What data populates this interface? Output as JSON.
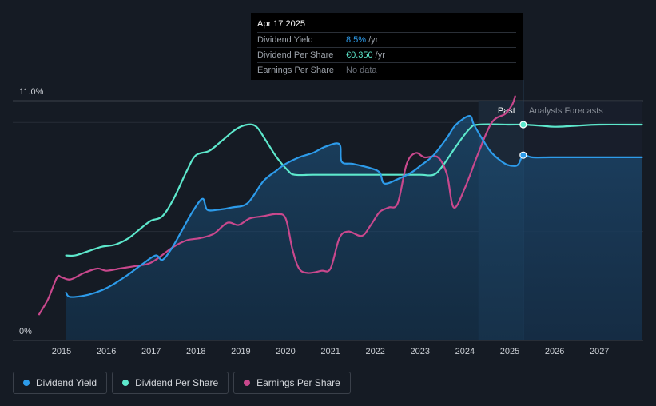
{
  "chart_data": {
    "type": "line",
    "ylim": [
      0,
      11
    ],
    "y_tick_labels": [
      "11.0%",
      "0%"
    ],
    "x_ticks": [
      "2015",
      "2016",
      "2017",
      "2018",
      "2019",
      "2020",
      "2021",
      "2022",
      "2023",
      "2024",
      "2025",
      "2026",
      "2027"
    ],
    "region_labels": {
      "past": "Past",
      "forecast": "Analysts Forecasts"
    },
    "forecast_start": 2025.3,
    "shade_start": 2024.3,
    "x_range": [
      2014.3,
      2027.95
    ],
    "series": [
      {
        "name": "Dividend Yield",
        "color": "#2d9bea",
        "fill": true,
        "points": [
          [
            2015.1,
            2.2
          ],
          [
            2015.2,
            2.0
          ],
          [
            2015.6,
            2.1
          ],
          [
            2016.0,
            2.4
          ],
          [
            2016.4,
            2.9
          ],
          [
            2016.8,
            3.5
          ],
          [
            2017.1,
            3.9
          ],
          [
            2017.25,
            3.7
          ],
          [
            2017.45,
            4.2
          ],
          [
            2017.7,
            5.1
          ],
          [
            2017.95,
            6.0
          ],
          [
            2018.15,
            6.5
          ],
          [
            2018.25,
            6.0
          ],
          [
            2018.5,
            6.0
          ],
          [
            2018.8,
            6.1
          ],
          [
            2019.15,
            6.3
          ],
          [
            2019.5,
            7.3
          ],
          [
            2019.8,
            7.8
          ],
          [
            2020.0,
            8.1
          ],
          [
            2020.3,
            8.4
          ],
          [
            2020.6,
            8.6
          ],
          [
            2020.9,
            8.9
          ],
          [
            2021.2,
            9.0
          ],
          [
            2021.25,
            8.2
          ],
          [
            2021.5,
            8.1
          ],
          [
            2021.9,
            7.9
          ],
          [
            2022.1,
            7.7
          ],
          [
            2022.2,
            7.2
          ],
          [
            2022.5,
            7.4
          ],
          [
            2022.8,
            7.7
          ],
          [
            2023.0,
            8.0
          ],
          [
            2023.3,
            8.5
          ],
          [
            2023.6,
            9.3
          ],
          [
            2023.8,
            9.9
          ],
          [
            2024.1,
            10.3
          ],
          [
            2024.2,
            9.9
          ],
          [
            2024.4,
            9.2
          ],
          [
            2024.6,
            8.6
          ],
          [
            2024.9,
            8.1
          ],
          [
            2025.1,
            8.0
          ],
          [
            2025.2,
            8.1
          ],
          [
            2025.3,
            8.5
          ],
          [
            2025.5,
            8.4
          ],
          [
            2025.9,
            8.4
          ],
          [
            2026.4,
            8.4
          ],
          [
            2026.9,
            8.4
          ],
          [
            2027.4,
            8.4
          ],
          [
            2027.95,
            8.4
          ]
        ]
      },
      {
        "name": "Dividend Per Share",
        "color": "#5de8cc",
        "fill": false,
        "points": [
          [
            2015.1,
            3.9
          ],
          [
            2015.3,
            3.9
          ],
          [
            2015.6,
            4.1
          ],
          [
            2015.9,
            4.3
          ],
          [
            2016.2,
            4.4
          ],
          [
            2016.5,
            4.7
          ],
          [
            2016.8,
            5.2
          ],
          [
            2017.0,
            5.5
          ],
          [
            2017.25,
            5.7
          ],
          [
            2017.5,
            6.5
          ],
          [
            2017.8,
            7.8
          ],
          [
            2018.0,
            8.5
          ],
          [
            2018.3,
            8.7
          ],
          [
            2018.6,
            9.2
          ],
          [
            2018.9,
            9.7
          ],
          [
            2019.15,
            9.9
          ],
          [
            2019.35,
            9.8
          ],
          [
            2019.55,
            9.2
          ],
          [
            2019.8,
            8.4
          ],
          [
            2020.05,
            7.8
          ],
          [
            2020.2,
            7.6
          ],
          [
            2020.6,
            7.6
          ],
          [
            2021.0,
            7.6
          ],
          [
            2021.5,
            7.6
          ],
          [
            2022.0,
            7.6
          ],
          [
            2022.5,
            7.6
          ],
          [
            2023.0,
            7.6
          ],
          [
            2023.3,
            7.6
          ],
          [
            2023.5,
            8.0
          ],
          [
            2023.8,
            8.9
          ],
          [
            2024.1,
            9.7
          ],
          [
            2024.3,
            9.9
          ],
          [
            2025.0,
            9.9
          ],
          [
            2025.3,
            9.9
          ],
          [
            2025.7,
            9.85
          ],
          [
            2026.0,
            9.8
          ],
          [
            2026.5,
            9.85
          ],
          [
            2027.0,
            9.9
          ],
          [
            2027.95,
            9.9
          ]
        ]
      },
      {
        "name": "Earnings Per Share",
        "color": "#c9488d",
        "fill": false,
        "points": [
          [
            2014.5,
            1.2
          ],
          [
            2014.7,
            1.9
          ],
          [
            2014.9,
            2.9
          ],
          [
            2015.0,
            2.9
          ],
          [
            2015.2,
            2.8
          ],
          [
            2015.5,
            3.1
          ],
          [
            2015.8,
            3.3
          ],
          [
            2016.0,
            3.2
          ],
          [
            2016.3,
            3.3
          ],
          [
            2016.6,
            3.4
          ],
          [
            2016.9,
            3.5
          ],
          [
            2017.1,
            3.7
          ],
          [
            2017.5,
            4.3
          ],
          [
            2017.8,
            4.6
          ],
          [
            2018.1,
            4.7
          ],
          [
            2018.4,
            4.9
          ],
          [
            2018.7,
            5.4
          ],
          [
            2018.95,
            5.3
          ],
          [
            2019.2,
            5.6
          ],
          [
            2019.5,
            5.7
          ],
          [
            2019.8,
            5.8
          ],
          [
            2020.0,
            5.6
          ],
          [
            2020.15,
            4.2
          ],
          [
            2020.3,
            3.3
          ],
          [
            2020.5,
            3.1
          ],
          [
            2020.8,
            3.2
          ],
          [
            2021.0,
            3.3
          ],
          [
            2021.2,
            4.7
          ],
          [
            2021.4,
            5.0
          ],
          [
            2021.7,
            4.8
          ],
          [
            2021.9,
            5.3
          ],
          [
            2022.1,
            5.9
          ],
          [
            2022.3,
            6.1
          ],
          [
            2022.5,
            6.3
          ],
          [
            2022.7,
            8.1
          ],
          [
            2022.9,
            8.6
          ],
          [
            2023.1,
            8.4
          ],
          [
            2023.4,
            8.4
          ],
          [
            2023.6,
            7.6
          ],
          [
            2023.75,
            6.1
          ],
          [
            2024.0,
            7.0
          ],
          [
            2024.3,
            8.6
          ],
          [
            2024.6,
            10.0
          ],
          [
            2024.9,
            10.4
          ],
          [
            2025.05,
            10.8
          ],
          [
            2025.12,
            11.2
          ]
        ]
      }
    ]
  },
  "tooltip": {
    "date": "Apr 17 2025",
    "rows": [
      {
        "label": "Dividend Yield",
        "value": "8.5%",
        "unit": "/yr"
      },
      {
        "label": "Dividend Per Share",
        "value": "€0.350",
        "unit": "/yr"
      },
      {
        "label": "Earnings Per Share",
        "value": "No data",
        "unit": ""
      }
    ]
  },
  "legend": {
    "items": [
      {
        "label": "Dividend Yield",
        "color": "#2d9bea"
      },
      {
        "label": "Dividend Per Share",
        "color": "#5de8cc"
      },
      {
        "label": "Earnings Per Share",
        "color": "#c9488d"
      }
    ]
  }
}
